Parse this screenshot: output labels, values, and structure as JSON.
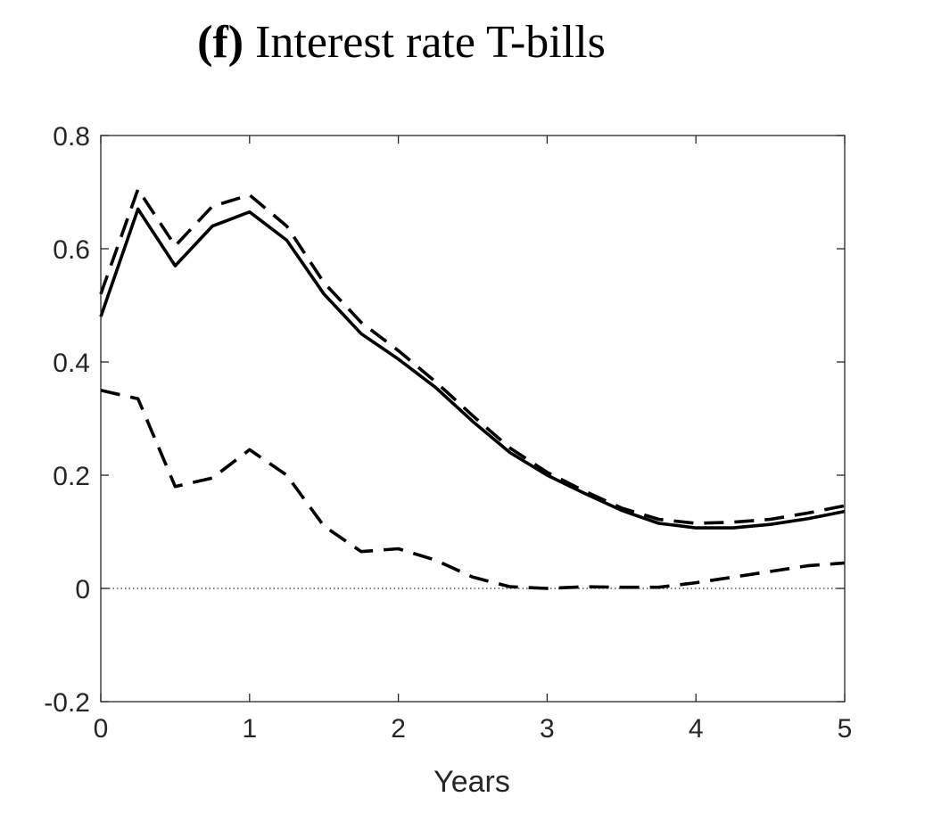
{
  "title": {
    "panel_letter": "(f)",
    "text": "Interest rate T-bills"
  },
  "chart_data": {
    "type": "line",
    "title": "(f) Interest rate T-bills",
    "xlabel": "Years",
    "ylabel": "",
    "xlim": [
      0,
      5
    ],
    "ylim": [
      -0.2,
      0.8
    ],
    "x_ticks": [
      0,
      1,
      2,
      3,
      4,
      5
    ],
    "x_tick_labels": [
      "0",
      "1",
      "2",
      "3",
      "4",
      "5"
    ],
    "y_ticks": [
      -0.2,
      0,
      0.2,
      0.4,
      0.6,
      0.8
    ],
    "y_tick_labels": [
      "-0.2",
      "0",
      "0.2",
      "0.4",
      "0.6",
      "0.8"
    ],
    "grid": false,
    "zero_line": true,
    "x": [
      0,
      0.25,
      0.5,
      0.75,
      1,
      1.25,
      1.5,
      1.75,
      2,
      2.25,
      2.5,
      2.75,
      3,
      3.25,
      3.5,
      3.75,
      4,
      4.25,
      4.5,
      4.75,
      5
    ],
    "series": [
      {
        "style": "solid",
        "values": [
          0.48,
          0.67,
          0.57,
          0.64,
          0.665,
          0.615,
          0.52,
          0.45,
          0.405,
          0.355,
          0.295,
          0.24,
          0.2,
          0.168,
          0.138,
          0.115,
          0.107,
          0.107,
          0.113,
          0.123,
          0.136
        ]
      },
      {
        "style": "dashed",
        "values": [
          0.52,
          0.705,
          0.605,
          0.675,
          0.695,
          0.64,
          0.54,
          0.47,
          0.42,
          0.365,
          0.305,
          0.248,
          0.205,
          0.172,
          0.142,
          0.122,
          0.115,
          0.117,
          0.122,
          0.133,
          0.146
        ]
      },
      {
        "style": "dashed",
        "values": [
          0.35,
          0.335,
          0.18,
          0.195,
          0.245,
          0.2,
          0.11,
          0.065,
          0.07,
          0.05,
          0.02,
          0.003,
          0.0,
          0.003,
          0.002,
          0.002,
          0.01,
          0.02,
          0.03,
          0.04,
          0.045
        ]
      }
    ]
  }
}
